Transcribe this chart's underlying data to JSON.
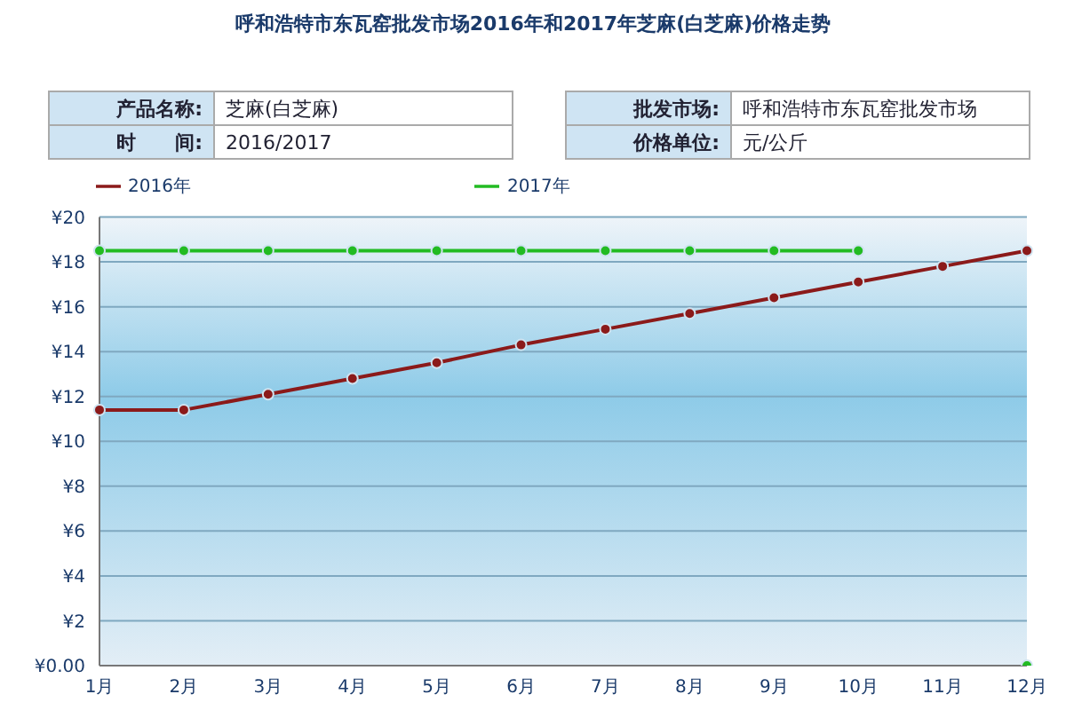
{
  "chart_data": {
    "type": "line",
    "title": "呼和浩特市东瓦窑批发市场2016年和2017年芝麻(白芝麻)价格走势",
    "annotations": [
      "产品名称:",
      "芝麻(白芝麻)",
      "时　　间:",
      "2016/2017",
      "批发市场:",
      "呼和浩特市东瓦窑批发市场",
      "价格单位:",
      "元/公斤"
    ],
    "categories": [
      "1月",
      "2月",
      "3月",
      "4月",
      "5月",
      "6月",
      "7月",
      "8月",
      "9月",
      "10月",
      "11月",
      "12月"
    ],
    "series": [
      {
        "name": "2016年",
        "color": "#8b1a1a",
        "values": [
          11.4,
          11.4,
          12.1,
          12.8,
          13.5,
          14.3,
          15.0,
          15.7,
          16.4,
          17.1,
          17.8,
          18.5
        ]
      },
      {
        "name": "2017年",
        "color": "#22bb22",
        "values": [
          18.5,
          18.5,
          18.5,
          18.5,
          18.5,
          18.5,
          18.5,
          18.5,
          18.5,
          18.5,
          null,
          0
        ]
      }
    ],
    "ylim": [
      0,
      20
    ],
    "yticks": [
      {
        "value": 0,
        "label": "¥0.00"
      },
      {
        "value": 2,
        "label": "¥2"
      },
      {
        "value": 4,
        "label": "¥4"
      },
      {
        "value": 6,
        "label": "¥6"
      },
      {
        "value": 8,
        "label": "¥8"
      },
      {
        "value": 10,
        "label": "¥10"
      },
      {
        "value": 12,
        "label": "¥12"
      },
      {
        "value": 14,
        "label": "¥14"
      },
      {
        "value": 16,
        "label": "¥16"
      },
      {
        "value": 18,
        "label": "¥18"
      },
      {
        "value": 20,
        "label": "¥20"
      }
    ],
    "grid": "y",
    "legend": "top left",
    "marker": "circle",
    "line_style": "solid"
  }
}
